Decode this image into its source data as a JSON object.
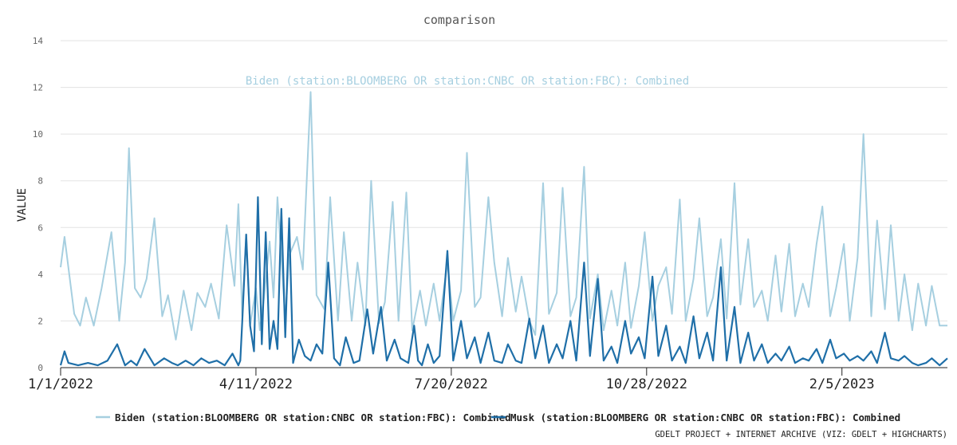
{
  "chart_data": {
    "type": "line",
    "title": "comparison",
    "ylabel": "VALUE",
    "xlabel": "",
    "ylim": [
      0,
      14
    ],
    "yticks": [
      0,
      2,
      4,
      6,
      8,
      10,
      12,
      14
    ],
    "xlim": [
      "2022-01-01",
      "2023-03-31"
    ],
    "xticks": [
      "1/1/2022",
      "4/11/2022",
      "7/20/2022",
      "10/28/2022",
      "2/5/2023"
    ],
    "grid": "horizontal",
    "legend_position": "bottom",
    "annotation": "Biden (station:BLOOMBERG OR station:CNBC OR station:FBC): Combined",
    "credit": "GDELT PROJECT + INTERNET ARCHIVE (VIZ: GDELT + HIGHCHARTS)",
    "colors": {
      "biden": "#a6cfe0",
      "musk": "#1f6fa8"
    },
    "series": [
      {
        "name": "Biden (station:BLOOMBERG OR station:CNBC OR station:FBC): Combined",
        "x": [
          "2022-01-01",
          "2022-01-03",
          "2022-01-08",
          "2022-01-11",
          "2022-01-14",
          "2022-01-18",
          "2022-01-22",
          "2022-01-27",
          "2022-01-31",
          "2022-02-03",
          "2022-02-05",
          "2022-02-08",
          "2022-02-11",
          "2022-02-14",
          "2022-02-18",
          "2022-02-22",
          "2022-02-25",
          "2022-03-01",
          "2022-03-05",
          "2022-03-09",
          "2022-03-12",
          "2022-03-16",
          "2022-03-19",
          "2022-03-23",
          "2022-03-27",
          "2022-03-31",
          "2022-04-02",
          "2022-04-04",
          "2022-04-06",
          "2022-04-08",
          "2022-04-11",
          "2022-04-13",
          "2022-04-15",
          "2022-04-18",
          "2022-04-20",
          "2022-04-22",
          "2022-04-26",
          "2022-04-28",
          "2022-05-02",
          "2022-05-05",
          "2022-05-09",
          "2022-05-12",
          "2022-05-16",
          "2022-05-19",
          "2022-05-23",
          "2022-05-26",
          "2022-05-30",
          "2022-06-02",
          "2022-06-06",
          "2022-06-09",
          "2022-06-13",
          "2022-06-16",
          "2022-06-20",
          "2022-06-23",
          "2022-06-27",
          "2022-06-30",
          "2022-07-04",
          "2022-07-07",
          "2022-07-11",
          "2022-07-14",
          "2022-07-18",
          "2022-07-21",
          "2022-07-25",
          "2022-07-28",
          "2022-08-01",
          "2022-08-04",
          "2022-08-08",
          "2022-08-11",
          "2022-08-15",
          "2022-08-18",
          "2022-08-22",
          "2022-08-25",
          "2022-08-29",
          "2022-09-01",
          "2022-09-05",
          "2022-09-08",
          "2022-09-12",
          "2022-09-15",
          "2022-09-19",
          "2022-09-22",
          "2022-09-26",
          "2022-09-29",
          "2022-10-03",
          "2022-10-06",
          "2022-10-10",
          "2022-10-13",
          "2022-10-17",
          "2022-10-20",
          "2022-10-24",
          "2022-10-27",
          "2022-10-31",
          "2022-11-03",
          "2022-11-07",
          "2022-11-10",
          "2022-11-14",
          "2022-11-17",
          "2022-11-21",
          "2022-11-24",
          "2022-11-28",
          "2022-12-01",
          "2022-12-05",
          "2022-12-08",
          "2022-12-12",
          "2022-12-15",
          "2022-12-19",
          "2022-12-22",
          "2022-12-26",
          "2022-12-29",
          "2023-01-02",
          "2023-01-05",
          "2023-01-09",
          "2023-01-12",
          "2023-01-16",
          "2023-01-19",
          "2023-01-23",
          "2023-01-26",
          "2023-01-30",
          "2023-02-02",
          "2023-02-06",
          "2023-02-09",
          "2023-02-13",
          "2023-02-16",
          "2023-02-20",
          "2023-02-23",
          "2023-02-27",
          "2023-03-02",
          "2023-03-06",
          "2023-03-09",
          "2023-03-13",
          "2023-03-16",
          "2023-03-20",
          "2023-03-23",
          "2023-03-27",
          "2023-03-31"
        ],
        "values": [
          4.3,
          5.6,
          2.3,
          1.8,
          3.0,
          1.8,
          3.4,
          5.8,
          2.0,
          4.5,
          9.4,
          3.4,
          3.0,
          3.8,
          6.4,
          2.2,
          3.1,
          1.2,
          3.3,
          1.6,
          3.2,
          2.6,
          3.6,
          2.1,
          6.1,
          3.5,
          7.0,
          2.2,
          5.7,
          1.8,
          3.4,
          1.6,
          2.9,
          5.4,
          3.0,
          7.3,
          2.1,
          4.8,
          5.6,
          4.2,
          11.8,
          3.1,
          2.5,
          7.3,
          2.0,
          5.8,
          2.0,
          4.5,
          1.8,
          8.0,
          1.9,
          2.8,
          7.1,
          2.0,
          7.5,
          1.6,
          3.3,
          1.8,
          3.6,
          2.0,
          4.5,
          2.0,
          3.3,
          9.2,
          2.6,
          3.0,
          7.3,
          4.5,
          2.2,
          4.7,
          2.4,
          3.9,
          2.0,
          1.4,
          7.9,
          2.3,
          3.2,
          7.7,
          2.2,
          3.0,
          8.6,
          2.1,
          4.0,
          1.6,
          3.3,
          1.8,
          4.5,
          1.7,
          3.5,
          5.8,
          2.0,
          3.5,
          4.3,
          2.3,
          7.2,
          2.0,
          3.8,
          6.4,
          2.2,
          3.0,
          5.5,
          2.1,
          7.9,
          2.7,
          5.5,
          2.6,
          3.3,
          2.0,
          4.8,
          2.4,
          5.3,
          2.2,
          3.6,
          2.6,
          5.3,
          6.9,
          2.2,
          3.4,
          5.3,
          2.0,
          4.7,
          10.0,
          2.2,
          6.3,
          2.5,
          6.1,
          2.0,
          4.0,
          1.6,
          3.6,
          1.8,
          3.5,
          1.8,
          1.8
        ]
      },
      {
        "name": "Musk (station:BLOOMBERG OR station:CNBC OR station:FBC): Combined",
        "x": [
          "2022-01-01",
          "2022-01-03",
          "2022-01-05",
          "2022-01-10",
          "2022-01-15",
          "2022-01-20",
          "2022-01-25",
          "2022-01-30",
          "2022-02-03",
          "2022-02-06",
          "2022-02-09",
          "2022-02-13",
          "2022-02-18",
          "2022-02-23",
          "2022-02-27",
          "2022-03-02",
          "2022-03-06",
          "2022-03-10",
          "2022-03-14",
          "2022-03-18",
          "2022-03-22",
          "2022-03-26",
          "2022-03-30",
          "2022-04-02",
          "2022-04-03",
          "2022-04-04",
          "2022-04-06",
          "2022-04-08",
          "2022-04-10",
          "2022-04-12",
          "2022-04-14",
          "2022-04-16",
          "2022-04-18",
          "2022-04-20",
          "2022-04-22",
          "2022-04-24",
          "2022-04-26",
          "2022-04-28",
          "2022-04-30",
          "2022-05-03",
          "2022-05-06",
          "2022-05-09",
          "2022-05-12",
          "2022-05-15",
          "2022-05-18",
          "2022-05-21",
          "2022-05-24",
          "2022-05-27",
          "2022-05-31",
          "2022-06-03",
          "2022-06-07",
          "2022-06-10",
          "2022-06-14",
          "2022-06-17",
          "2022-06-21",
          "2022-06-24",
          "2022-06-28",
          "2022-07-01",
          "2022-07-03",
          "2022-07-05",
          "2022-07-08",
          "2022-07-11",
          "2022-07-14",
          "2022-07-18",
          "2022-07-21",
          "2022-07-25",
          "2022-07-28",
          "2022-08-01",
          "2022-08-04",
          "2022-08-08",
          "2022-08-11",
          "2022-08-15",
          "2022-08-18",
          "2022-08-22",
          "2022-08-25",
          "2022-08-29",
          "2022-09-01",
          "2022-09-05",
          "2022-09-08",
          "2022-09-12",
          "2022-09-15",
          "2022-09-19",
          "2022-09-22",
          "2022-09-26",
          "2022-09-29",
          "2022-10-03",
          "2022-10-06",
          "2022-10-10",
          "2022-10-13",
          "2022-10-17",
          "2022-10-20",
          "2022-10-24",
          "2022-10-27",
          "2022-10-31",
          "2022-11-03",
          "2022-11-07",
          "2022-11-10",
          "2022-11-14",
          "2022-11-17",
          "2022-11-21",
          "2022-11-24",
          "2022-11-28",
          "2022-12-01",
          "2022-12-05",
          "2022-12-08",
          "2022-12-12",
          "2022-12-15",
          "2022-12-19",
          "2022-12-22",
          "2022-12-26",
          "2022-12-29",
          "2023-01-02",
          "2023-01-05",
          "2023-01-09",
          "2023-01-12",
          "2023-01-16",
          "2023-01-19",
          "2023-01-23",
          "2023-01-26",
          "2023-01-30",
          "2023-02-02",
          "2023-02-06",
          "2023-02-09",
          "2023-02-13",
          "2023-02-16",
          "2023-02-20",
          "2023-02-23",
          "2023-02-27",
          "2023-03-02",
          "2023-03-06",
          "2023-03-09",
          "2023-03-13",
          "2023-03-16",
          "2023-03-20",
          "2023-03-23",
          "2023-03-27",
          "2023-03-31"
        ],
        "values": [
          0.1,
          0.7,
          0.2,
          0.1,
          0.2,
          0.1,
          0.3,
          1.0,
          0.1,
          0.3,
          0.1,
          0.8,
          0.1,
          0.4,
          0.2,
          0.1,
          0.3,
          0.1,
          0.4,
          0.2,
          0.3,
          0.1,
          0.6,
          0.1,
          0.3,
          2.0,
          5.7,
          1.8,
          0.7,
          7.3,
          1.0,
          5.8,
          0.8,
          2.0,
          0.8,
          6.8,
          1.3,
          6.4,
          0.2,
          1.2,
          0.5,
          0.3,
          1.0,
          0.6,
          4.5,
          0.4,
          0.1,
          1.3,
          0.2,
          0.3,
          2.5,
          0.6,
          2.6,
          0.3,
          1.2,
          0.4,
          0.2,
          1.8,
          0.3,
          0.1,
          1.0,
          0.2,
          0.5,
          5.0,
          0.3,
          2.0,
          0.4,
          1.3,
          0.2,
          1.5,
          0.3,
          0.2,
          1.0,
          0.3,
          0.2,
          2.1,
          0.4,
          1.8,
          0.2,
          1.0,
          0.4,
          2.0,
          0.3,
          4.5,
          0.5,
          3.8,
          0.3,
          0.9,
          0.2,
          2.0,
          0.6,
          1.3,
          0.4,
          3.9,
          0.5,
          1.8,
          0.3,
          0.9,
          0.2,
          2.2,
          0.4,
          1.5,
          0.3,
          4.3,
          0.3,
          2.6,
          0.2,
          1.5,
          0.3,
          1.0,
          0.2,
          0.6,
          0.3,
          0.9,
          0.2,
          0.4,
          0.3,
          0.8,
          0.2,
          1.2,
          0.4,
          0.6,
          0.3,
          0.5,
          0.3,
          0.7,
          0.2,
          1.5,
          0.4,
          0.3,
          0.5,
          0.2,
          0.1,
          0.2,
          0.4,
          0.1,
          0.4
        ]
      }
    ]
  }
}
